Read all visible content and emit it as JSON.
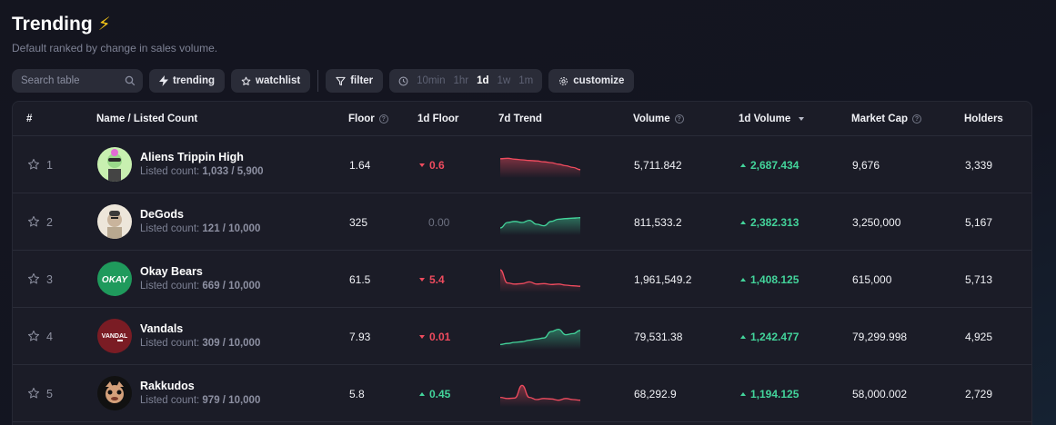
{
  "header": {
    "title": "Trending",
    "subtitle": "Default ranked by change in sales volume."
  },
  "toolbar": {
    "search_placeholder": "Search table",
    "trending_label": "trending",
    "watchlist_label": "watchlist",
    "filter_label": "filter",
    "time_options": [
      "10min",
      "1hr",
      "1d",
      "1w",
      "1m"
    ],
    "time_selected": "1d",
    "customize_label": "customize"
  },
  "columns": {
    "rank": "#",
    "name": "Name / Listed Count",
    "floor": "Floor",
    "floor_1d": "1d Floor",
    "trend_7d": "7d Trend",
    "volume": "Volume",
    "volume_1d": "1d Volume",
    "market_cap": "Market Cap",
    "holders": "Holders"
  },
  "listed_prefix": "Listed count: ",
  "rows": [
    {
      "rank": "1",
      "name": "Aliens Trippin High",
      "listed": "1,033 / 5,900",
      "floor": "1.64",
      "floor_1d": "0.6",
      "floor_dir": "down",
      "trend": [
        0.8,
        0.82,
        0.78,
        0.75,
        0.72,
        0.7,
        0.66,
        0.62,
        0.55,
        0.48,
        0.4,
        0.3
      ],
      "trend_color": "red",
      "volume": "5,711.842",
      "volume_1d": "2,687.434",
      "volume_dir": "up",
      "market_cap": "9,676",
      "holders": "3,339"
    },
    {
      "rank": "2",
      "name": "DeGods",
      "listed": "121 / 10,000",
      "floor": "325",
      "floor_1d": "0.00",
      "floor_dir": "flat",
      "trend": [
        0.25,
        0.5,
        0.55,
        0.5,
        0.6,
        0.42,
        0.35,
        0.55,
        0.65,
        0.68,
        0.7,
        0.72
      ],
      "trend_color": "green",
      "volume": "811,533.2",
      "volume_1d": "2,382.313",
      "volume_dir": "up",
      "market_cap": "3,250,000",
      "holders": "5,167"
    },
    {
      "rank": "3",
      "name": "Okay Bears",
      "listed": "669 / 10,000",
      "floor": "61.5",
      "floor_1d": "5.4",
      "floor_dir": "down",
      "trend": [
        0.95,
        0.35,
        0.3,
        0.32,
        0.4,
        0.3,
        0.32,
        0.28,
        0.3,
        0.25,
        0.22,
        0.2
      ],
      "trend_color": "red",
      "volume": "1,961,549.2",
      "volume_1d": "1,408.125",
      "volume_dir": "up",
      "market_cap": "615,000",
      "holders": "5,713"
    },
    {
      "rank": "4",
      "name": "Vandals",
      "listed": "309 / 10,000",
      "floor": "7.93",
      "floor_1d": "0.01",
      "floor_dir": "down",
      "trend": [
        0.15,
        0.2,
        0.25,
        0.28,
        0.35,
        0.4,
        0.45,
        0.75,
        0.85,
        0.6,
        0.65,
        0.8
      ],
      "trend_color": "green",
      "volume": "79,531.38",
      "volume_1d": "1,242.477",
      "volume_dir": "up",
      "market_cap": "79,299.998",
      "holders": "4,925"
    },
    {
      "rank": "5",
      "name": "Rakkudos",
      "listed": "979 / 10,000",
      "floor": "5.8",
      "floor_1d": "0.45",
      "floor_dir": "up",
      "trend": [
        0.35,
        0.3,
        0.32,
        0.9,
        0.35,
        0.25,
        0.3,
        0.28,
        0.22,
        0.3,
        0.25,
        0.22
      ],
      "trend_color": "red",
      "volume": "68,292.9",
      "volume_1d": "1,194.125",
      "volume_dir": "up",
      "market_cap": "58,000.002",
      "holders": "2,729"
    }
  ],
  "colors": {
    "bg": "#14151f",
    "up": "#43d49b",
    "down": "#ef4b5e",
    "bolt": "#f5c518"
  }
}
